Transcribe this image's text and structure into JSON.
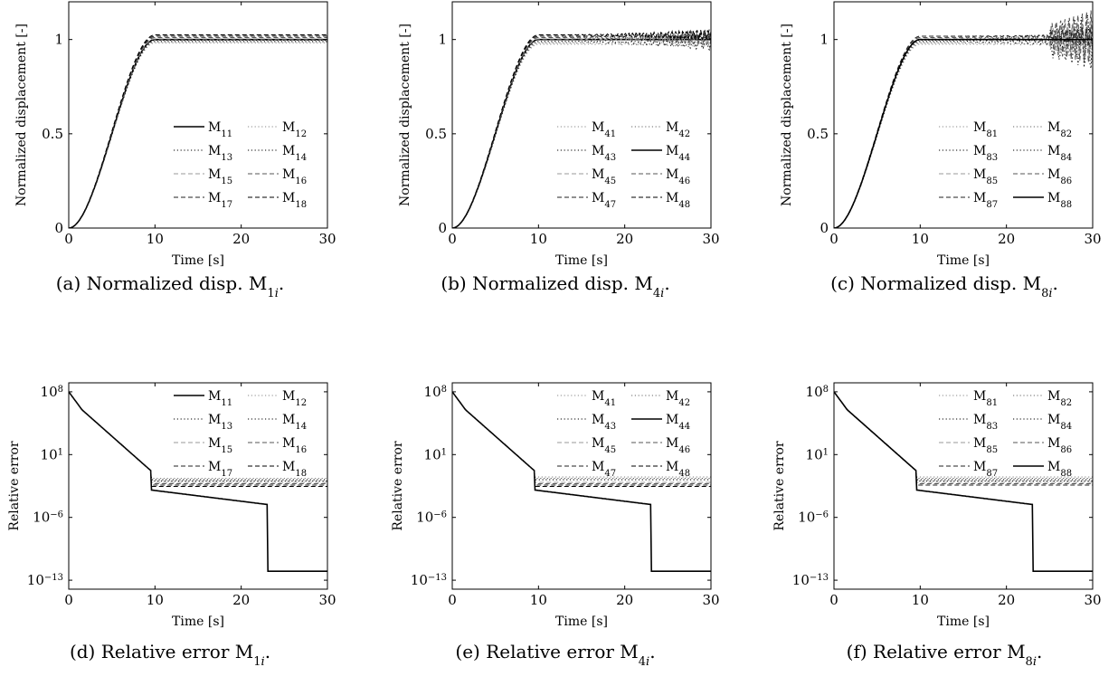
{
  "chart_data": [
    {
      "id": "a",
      "type": "line",
      "caption": "(a) Normalized disp. M1i.",
      "xlabel": "Time [s]",
      "ylabel": "Normalized displacement [-]",
      "xlim": [
        0,
        30
      ],
      "ylim": [
        0,
        1.2
      ],
      "xticks": [
        0,
        10,
        20,
        30
      ],
      "yticks": [
        0,
        0.5,
        1
      ],
      "yscale": "linear",
      "legend": "bottom-right",
      "emph": "M11",
      "series": [
        {
          "name": "M11",
          "style": "solid",
          "color": "#000000"
        },
        {
          "name": "M12",
          "style": "dotted",
          "color": "#888888"
        },
        {
          "name": "M13",
          "style": "dotted",
          "color": "#000000"
        },
        {
          "name": "M14",
          "style": "dotted",
          "color": "#000000"
        },
        {
          "name": "M15",
          "style": "dashed",
          "color": "#999999"
        },
        {
          "name": "M16",
          "style": "dashed",
          "color": "#555555"
        },
        {
          "name": "M17",
          "style": "dashed",
          "color": "#222222"
        },
        {
          "name": "M18",
          "style": "dashed",
          "color": "#000000"
        }
      ]
    },
    {
      "id": "b",
      "type": "line",
      "caption": "(b) Normalized disp. M4i.",
      "xlabel": "Time [s]",
      "ylabel": "Normalized displacement [-]",
      "xlim": [
        0,
        30
      ],
      "ylim": [
        0,
        1.2
      ],
      "xticks": [
        0,
        10,
        20,
        30
      ],
      "yticks": [
        0,
        0.5,
        1
      ],
      "yscale": "linear",
      "legend": "bottom-right",
      "emph": "M44",
      "series": [
        {
          "name": "M41",
          "style": "dotted",
          "color": "#888888"
        },
        {
          "name": "M42",
          "style": "dotted",
          "color": "#666666"
        },
        {
          "name": "M43",
          "style": "dotted",
          "color": "#000000"
        },
        {
          "name": "M44",
          "style": "solid",
          "color": "#000000"
        },
        {
          "name": "M45",
          "style": "dashed",
          "color": "#999999"
        },
        {
          "name": "M46",
          "style": "dashed",
          "color": "#555555"
        },
        {
          "name": "M47",
          "style": "dashed",
          "color": "#222222"
        },
        {
          "name": "M48",
          "style": "dashed",
          "color": "#000000"
        }
      ]
    },
    {
      "id": "c",
      "type": "line",
      "caption": "(c) Normalized disp. M8i.",
      "xlabel": "Time [s]",
      "ylabel": "Normalized displacement [-]",
      "xlim": [
        0,
        30
      ],
      "ylim": [
        0,
        1.2
      ],
      "xticks": [
        0,
        10,
        20,
        30
      ],
      "yticks": [
        0,
        0.5,
        1
      ],
      "yscale": "linear",
      "legend": "bottom-right",
      "emph": "M88",
      "series": [
        {
          "name": "M81",
          "style": "dotted",
          "color": "#888888"
        },
        {
          "name": "M82",
          "style": "dotted",
          "color": "#666666"
        },
        {
          "name": "M83",
          "style": "dotted",
          "color": "#000000"
        },
        {
          "name": "M84",
          "style": "dotted",
          "color": "#000000"
        },
        {
          "name": "M85",
          "style": "dashed",
          "color": "#999999"
        },
        {
          "name": "M86",
          "style": "dashed",
          "color": "#555555"
        },
        {
          "name": "M87",
          "style": "dashed",
          "color": "#222222"
        },
        {
          "name": "M88",
          "style": "solid",
          "color": "#000000"
        }
      ]
    },
    {
      "id": "d",
      "type": "line",
      "caption": "(d) Relative error M1i.",
      "xlabel": "Time [s]",
      "ylabel": "Relative error",
      "xlim": [
        0,
        30
      ],
      "ylim": [
        1e-14,
        1000000000.0
      ],
      "xticks": [
        0,
        10,
        20,
        30
      ],
      "yticks": [
        1e-13,
        1e-06,
        10,
        100000000.0
      ],
      "yticklabels": [
        "10^-13",
        "10^-6",
        "10^1",
        "10^8"
      ],
      "yscale": "log",
      "legend": "top-right",
      "emph": "M11",
      "series": [
        {
          "name": "M11",
          "style": "solid",
          "color": "#000000"
        },
        {
          "name": "M12",
          "style": "dotted",
          "color": "#888888"
        },
        {
          "name": "M13",
          "style": "dotted",
          "color": "#000000"
        },
        {
          "name": "M14",
          "style": "dotted",
          "color": "#000000"
        },
        {
          "name": "M15",
          "style": "dashed",
          "color": "#999999"
        },
        {
          "name": "M16",
          "style": "dashed",
          "color": "#555555"
        },
        {
          "name": "M17",
          "style": "dashed",
          "color": "#222222"
        },
        {
          "name": "M18",
          "style": "dashed",
          "color": "#000000"
        }
      ]
    },
    {
      "id": "e",
      "type": "line",
      "caption": "(e) Relative error M4i.",
      "xlabel": "Time [s]",
      "ylabel": "Relative error",
      "xlim": [
        0,
        30
      ],
      "ylim": [
        1e-14,
        1000000000.0
      ],
      "xticks": [
        0,
        10,
        20,
        30
      ],
      "yticks": [
        1e-13,
        1e-06,
        10,
        100000000.0
      ],
      "yticklabels": [
        "10^-13",
        "10^-6",
        "10^1",
        "10^8"
      ],
      "yscale": "log",
      "legend": "top-right",
      "emph": "M44",
      "series": [
        {
          "name": "M41",
          "style": "dotted",
          "color": "#888888"
        },
        {
          "name": "M42",
          "style": "dotted",
          "color": "#666666"
        },
        {
          "name": "M43",
          "style": "dotted",
          "color": "#000000"
        },
        {
          "name": "M44",
          "style": "solid",
          "color": "#000000"
        },
        {
          "name": "M45",
          "style": "dashed",
          "color": "#999999"
        },
        {
          "name": "M46",
          "style": "dashed",
          "color": "#555555"
        },
        {
          "name": "M47",
          "style": "dashed",
          "color": "#222222"
        },
        {
          "name": "M48",
          "style": "dashed",
          "color": "#000000"
        }
      ]
    },
    {
      "id": "f",
      "type": "line",
      "caption": "(f) Relative error M8i.",
      "xlabel": "Time [s]",
      "ylabel": "Relative error",
      "xlim": [
        0,
        30
      ],
      "ylim": [
        1e-14,
        1000000000.0
      ],
      "xticks": [
        0,
        10,
        20,
        30
      ],
      "yticks": [
        1e-13,
        1e-06,
        10,
        100000000.0
      ],
      "yticklabels": [
        "10^-13",
        "10^-6",
        "10^1",
        "10^8"
      ],
      "yscale": "log",
      "legend": "top-right",
      "emph": "M88",
      "series": [
        {
          "name": "M81",
          "style": "dotted",
          "color": "#888888"
        },
        {
          "name": "M82",
          "style": "dotted",
          "color": "#666666"
        },
        {
          "name": "M83",
          "style": "dotted",
          "color": "#000000"
        },
        {
          "name": "M84",
          "style": "dotted",
          "color": "#000000"
        },
        {
          "name": "M85",
          "style": "dashed",
          "color": "#999999"
        },
        {
          "name": "M86",
          "style": "dashed",
          "color": "#555555"
        },
        {
          "name": "M87",
          "style": "dashed",
          "color": "#222222"
        },
        {
          "name": "M88",
          "style": "solid",
          "color": "#000000"
        }
      ]
    }
  ]
}
